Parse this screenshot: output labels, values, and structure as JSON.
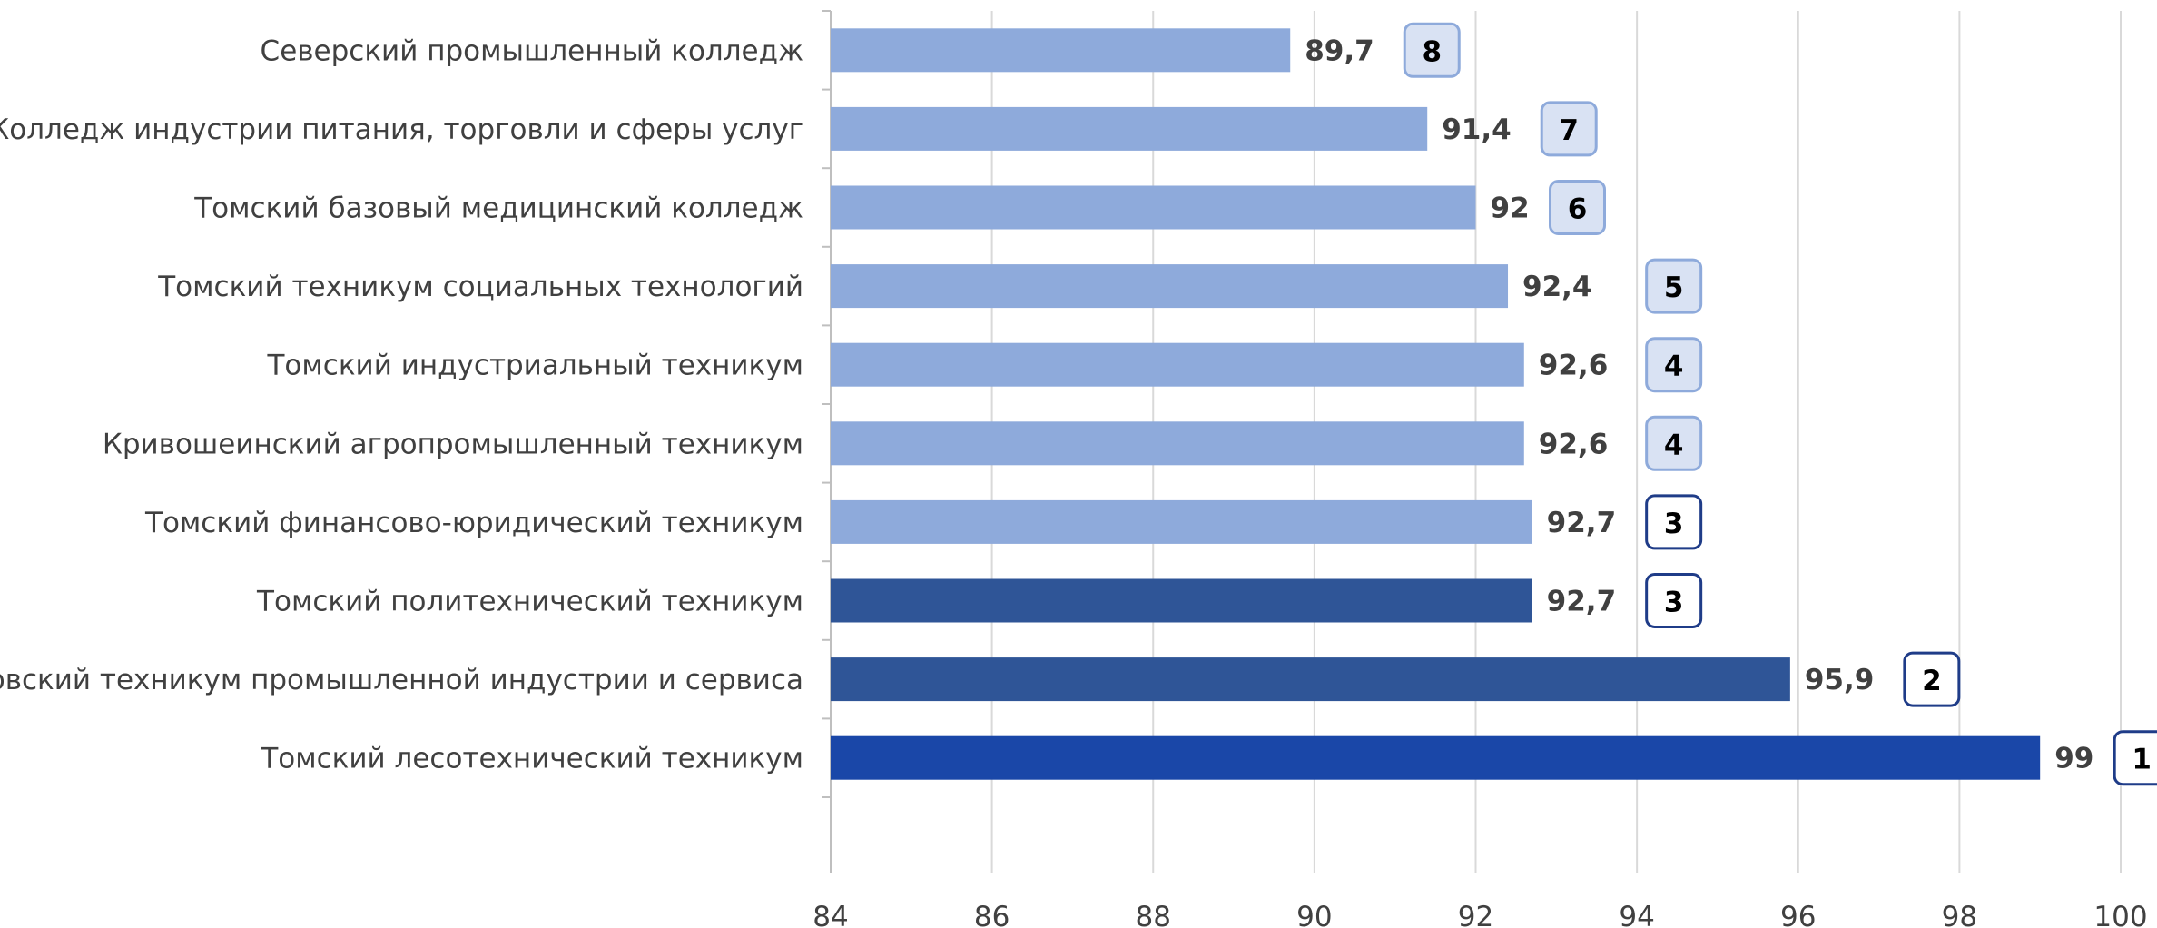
{
  "chart_data": {
    "type": "bar",
    "orientation": "horizontal",
    "title": "",
    "xlabel": "",
    "ylabel": "",
    "xlim": [
      84,
      100
    ],
    "x_ticks": [
      "84",
      "86",
      "88",
      "90",
      "92",
      "94",
      "96",
      "98",
      "100"
    ],
    "x_tick_values": [
      84,
      86,
      88,
      90,
      92,
      94,
      96,
      98,
      100
    ],
    "grid": true,
    "legend": "none",
    "categories": [
      "Северский промышленный колледж",
      "Колледж индустрии питания, торговли и сферы услуг",
      "Томский базовый медицинский колледж",
      "Томский техникум социальных технологий",
      "Томский индустриальный техникум",
      "Кривошеинский агропромышленный техникум",
      "Томский финансово-юридический техникум",
      "Томский политехнический техникум",
      "Асиновский техникум промышленной индустрии и сервиса",
      "Томский лесотехнический техникум"
    ],
    "values": [
      89.7,
      91.4,
      92,
      92.4,
      92.6,
      92.6,
      92.7,
      92.7,
      95.9,
      99
    ],
    "value_labels": [
      "89,7",
      "91,4",
      "92",
      "92,4",
      "92,6",
      "92,6",
      "92,7",
      "92,7",
      "95,9",
      "99"
    ],
    "ranks": [
      "8",
      "7",
      "6",
      "5",
      "4",
      "4",
      "3",
      "3",
      "2",
      "1"
    ],
    "bar_colors": [
      "#8eaadb",
      "#8eaadb",
      "#8eaadb",
      "#8eaadb",
      "#8eaadb",
      "#8eaadb",
      "#8eaadb",
      "#2f5597",
      "#2f5597",
      "#1a47a8"
    ],
    "rank_box_fill": [
      "#d9e2f3",
      "#d9e2f3",
      "#d9e2f3",
      "#d9e2f3",
      "#d9e2f3",
      "#d9e2f3",
      "#ffffff",
      "#ffffff",
      "#ffffff",
      "#ffffff"
    ],
    "rank_box_stroke": [
      "#8eaadb",
      "#8eaadb",
      "#8eaadb",
      "#8eaadb",
      "#8eaadb",
      "#8eaadb",
      "#1f3c88",
      "#1f3c88",
      "#1f3c88",
      "#1f3c88"
    ]
  },
  "colors": {
    "gridline": "#d9d9d9",
    "axis": "#bfbfbf",
    "text": "#404040"
  }
}
